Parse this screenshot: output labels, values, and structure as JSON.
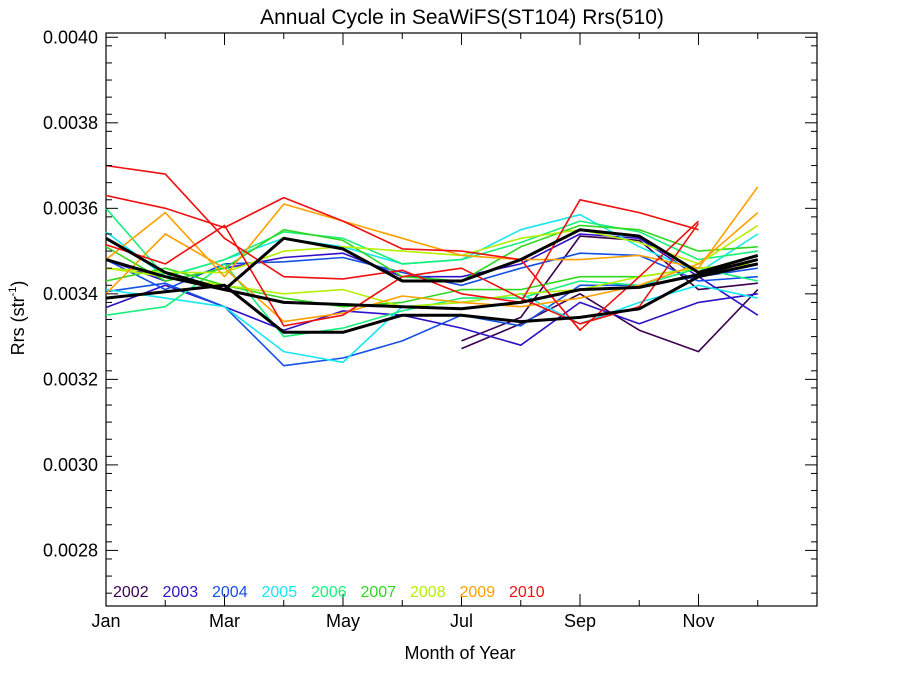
{
  "chart_data": {
    "type": "line",
    "title": "Annual Cycle in SeaWiFS(ST104) Rrs(510)",
    "xlabel": "Month of Year",
    "ylabel_main": "Rrs (str",
    "ylabel_sup": "-1",
    "ylabel_close": ")",
    "xlim": [
      1,
      13
    ],
    "ylim": [
      0.00267,
      0.00401
    ],
    "xticks": [
      {
        "v": 1,
        "label": "Jan"
      },
      {
        "v": 3,
        "label": "Mar"
      },
      {
        "v": 5,
        "label": "May"
      },
      {
        "v": 7,
        "label": "Jul"
      },
      {
        "v": 9,
        "label": "Sep"
      },
      {
        "v": 11,
        "label": "Nov"
      }
    ],
    "xminor": [
      2,
      4,
      6,
      8,
      10,
      12
    ],
    "yticks": [
      {
        "v": 0.0028,
        "label": "0.0028"
      },
      {
        "v": 0.003,
        "label": "0.0030"
      },
      {
        "v": 0.0032,
        "label": "0.0032"
      },
      {
        "v": 0.0034,
        "label": "0.0034"
      },
      {
        "v": 0.0036,
        "label": "0.0036"
      },
      {
        "v": 0.0038,
        "label": "0.0038"
      },
      {
        "v": 0.004,
        "label": "0.0040"
      }
    ],
    "legend_position": "bottom-left",
    "series": [
      {
        "name": "2002",
        "color": "#3c0050",
        "x": [
          7,
          8,
          9,
          10,
          11,
          12
        ],
        "values": [
          0.003272,
          0.00333,
          0.0034,
          0.003315,
          0.003265,
          0.00341
        ]
      },
      {
        "name": "2002",
        "color": "#3c0050",
        "legend": false,
        "x": [
          7,
          8,
          9,
          10,
          11,
          12
        ],
        "values": [
          0.00329,
          0.003345,
          0.003535,
          0.003525,
          0.00341,
          0.003425
        ]
      },
      {
        "name": "2003",
        "color": "#3010c8",
        "x": [
          1,
          2,
          3,
          4,
          5,
          6,
          7,
          8,
          9,
          10,
          11,
          12
        ],
        "values": [
          0.003368,
          0.00342,
          0.00337,
          0.003315,
          0.00336,
          0.00335,
          0.00332,
          0.00328,
          0.00338,
          0.00333,
          0.00338,
          0.0034
        ]
      },
      {
        "name": "2003",
        "color": "#3010c8",
        "legend": false,
        "x": [
          1,
          2,
          3,
          4,
          5,
          6,
          7,
          8,
          9,
          10,
          11,
          12
        ],
        "values": [
          0.00348,
          0.00343,
          0.00346,
          0.003485,
          0.003495,
          0.00344,
          0.00344,
          0.00347,
          0.00354,
          0.00353,
          0.00344,
          0.00335
        ]
      },
      {
        "name": "2004",
        "color": "#1450e6",
        "x": [
          1,
          2,
          3,
          4,
          5,
          6,
          7,
          8,
          9,
          10,
          11,
          12
        ],
        "values": [
          0.003405,
          0.003425,
          0.00337,
          0.003232,
          0.00325,
          0.00329,
          0.00335,
          0.003325,
          0.00342,
          0.00342,
          0.00344,
          0.00346
        ]
      },
      {
        "name": "2004",
        "color": "#1450e6",
        "legend": false,
        "x": [
          1,
          2,
          3,
          4,
          5,
          6,
          7,
          8,
          9,
          10,
          11,
          12
        ],
        "values": [
          0.00348,
          0.00341,
          0.00347,
          0.003475,
          0.003485,
          0.00345,
          0.00342,
          0.00346,
          0.003495,
          0.00349,
          0.00343,
          0.00344
        ]
      },
      {
        "name": "2005",
        "color": "#18e6f0",
        "x": [
          1,
          2,
          3,
          4,
          5,
          6,
          7,
          8,
          9,
          10,
          11,
          12
        ],
        "values": [
          0.00341,
          0.00339,
          0.00337,
          0.003265,
          0.00324,
          0.00337,
          0.00338,
          0.0034,
          0.00333,
          0.00338,
          0.00342,
          0.00339
        ]
      },
      {
        "name": "2005",
        "color": "#18e6f0",
        "legend": false,
        "x": [
          1,
          2,
          3,
          4,
          5,
          6,
          7,
          8,
          9,
          10,
          11,
          12
        ],
        "values": [
          0.003545,
          0.00344,
          0.00348,
          0.00353,
          0.00351,
          0.00347,
          0.00348,
          0.00355,
          0.003585,
          0.00351,
          0.00345,
          0.00354
        ]
      },
      {
        "name": "2006",
        "color": "#18f07a",
        "x": [
          1,
          2,
          3,
          4,
          5,
          6,
          7,
          8,
          9,
          10,
          11,
          12
        ],
        "values": [
          0.00335,
          0.00337,
          0.00347,
          0.0033,
          0.00332,
          0.00336,
          0.00339,
          0.00339,
          0.00343,
          0.00342,
          0.00346,
          0.00343
        ]
      },
      {
        "name": "2006",
        "color": "#18f07a",
        "legend": false,
        "x": [
          1,
          2,
          3,
          4,
          5,
          6,
          7,
          8,
          9,
          10,
          11,
          12
        ],
        "values": [
          0.0036,
          0.00344,
          0.00348,
          0.003545,
          0.00353,
          0.00347,
          0.00348,
          0.00352,
          0.00357,
          0.003545,
          0.00348,
          0.0035
        ]
      },
      {
        "name": "2007",
        "color": "#30d820",
        "x": [
          1,
          2,
          3,
          4,
          5,
          6,
          7,
          8,
          9,
          10,
          11,
          12
        ],
        "values": [
          0.00343,
          0.00346,
          0.00342,
          0.00339,
          0.00337,
          0.00338,
          0.00341,
          0.00341,
          0.00344,
          0.00344,
          0.00346,
          0.00347
        ]
      },
      {
        "name": "2007",
        "color": "#30d820",
        "legend": false,
        "x": [
          1,
          2,
          3,
          4,
          5,
          6,
          7,
          8,
          9,
          10,
          11,
          12
        ],
        "values": [
          0.00351,
          0.00343,
          0.00346,
          0.00355,
          0.003525,
          0.00344,
          0.00343,
          0.00351,
          0.00356,
          0.00355,
          0.0035,
          0.00351
        ]
      },
      {
        "name": "2008",
        "color": "#b4f000",
        "x": [
          1,
          2,
          3,
          4,
          5,
          6,
          7,
          8,
          9,
          10,
          11,
          12
        ],
        "values": [
          0.00346,
          0.00345,
          0.00345,
          0.0035,
          0.00351,
          0.0035,
          0.00349,
          0.00353,
          0.00355,
          0.00352,
          0.00347,
          0.00356
        ]
      },
      {
        "name": "2008",
        "color": "#b4f000",
        "legend": false,
        "x": [
          1,
          2,
          3,
          4,
          5,
          6,
          7,
          8,
          9,
          10,
          11,
          12
        ],
        "values": [
          0.00346,
          0.00344,
          0.00342,
          0.0034,
          0.00341,
          0.00337,
          0.00338,
          0.0034,
          0.00341,
          0.00344,
          0.00346,
          0.00347
        ]
      },
      {
        "name": "2009",
        "color": "#ffa000",
        "x": [
          1,
          2,
          3,
          4,
          5,
          6,
          7,
          8,
          9,
          10,
          11,
          12
        ],
        "values": [
          0.00348,
          0.00359,
          0.00344,
          0.00361,
          0.00357,
          0.00353,
          0.00349,
          0.00348,
          0.00348,
          0.00349,
          0.00346,
          0.00365
        ]
      },
      {
        "name": "2009",
        "color": "#ffa000",
        "legend": false,
        "x": [
          1,
          2,
          3,
          4,
          5,
          6,
          7,
          8,
          9,
          10,
          11,
          12
        ],
        "values": [
          0.0034,
          0.00354,
          0.00346,
          0.003335,
          0.003355,
          0.003395,
          0.00338,
          0.00337,
          0.00339,
          0.00342,
          0.00347,
          0.00359
        ]
      },
      {
        "name": "2010",
        "color": "#f01010",
        "x": [
          1,
          2,
          3,
          4,
          5,
          6,
          7,
          8,
          9,
          10,
          11
        ],
        "values": [
          0.0037,
          0.00368,
          0.00353,
          0.00344,
          0.003435,
          0.003455,
          0.0034,
          0.00338,
          0.00362,
          0.00359,
          0.00355
        ]
      },
      {
        "name": "2010",
        "color": "#f01010",
        "legend": false,
        "x": [
          1,
          2,
          3,
          4,
          5,
          6,
          7,
          8,
          9,
          10,
          11
        ],
        "values": [
          0.00363,
          0.0036,
          0.003555,
          0.003625,
          0.00357,
          0.003505,
          0.0035,
          0.00348,
          0.003315,
          0.00344,
          0.00357
        ]
      },
      {
        "name": "2010",
        "color": "#f01010",
        "legend": false,
        "x": [
          1,
          2,
          3,
          4,
          5,
          6,
          7,
          8,
          9,
          10,
          11
        ],
        "values": [
          0.003515,
          0.00347,
          0.00356,
          0.003325,
          0.00335,
          0.00344,
          0.00346,
          0.00339,
          0.00333,
          0.00337,
          0.003565
        ]
      },
      {
        "name": "Mean",
        "color": "#000000",
        "legend": false,
        "thick": true,
        "x": [
          1,
          2,
          3,
          4,
          5,
          6,
          7,
          8,
          9,
          10,
          11,
          12
        ],
        "values": [
          0.00353,
          0.00345,
          0.00341,
          0.00353,
          0.003505,
          0.00343,
          0.00343,
          0.00348,
          0.00355,
          0.003535,
          0.00345,
          0.00349
        ]
      },
      {
        "name": "Mean",
        "color": "#000000",
        "legend": false,
        "thick": true,
        "x": [
          1,
          2,
          3,
          4,
          5,
          6,
          7,
          8,
          9,
          10,
          11,
          12
        ],
        "values": [
          0.00348,
          0.00344,
          0.00341,
          0.00338,
          0.003375,
          0.00337,
          0.003365,
          0.00338,
          0.00341,
          0.003415,
          0.003445,
          0.00348
        ]
      },
      {
        "name": "Mean",
        "color": "#000000",
        "legend": false,
        "thick": true,
        "x": [
          1,
          2,
          3,
          4,
          5,
          6,
          7,
          8,
          9,
          10,
          11,
          12
        ],
        "values": [
          0.00339,
          0.003405,
          0.00342,
          0.00331,
          0.00331,
          0.00335,
          0.00335,
          0.003335,
          0.003345,
          0.003365,
          0.00344,
          0.00347
        ]
      }
    ]
  }
}
